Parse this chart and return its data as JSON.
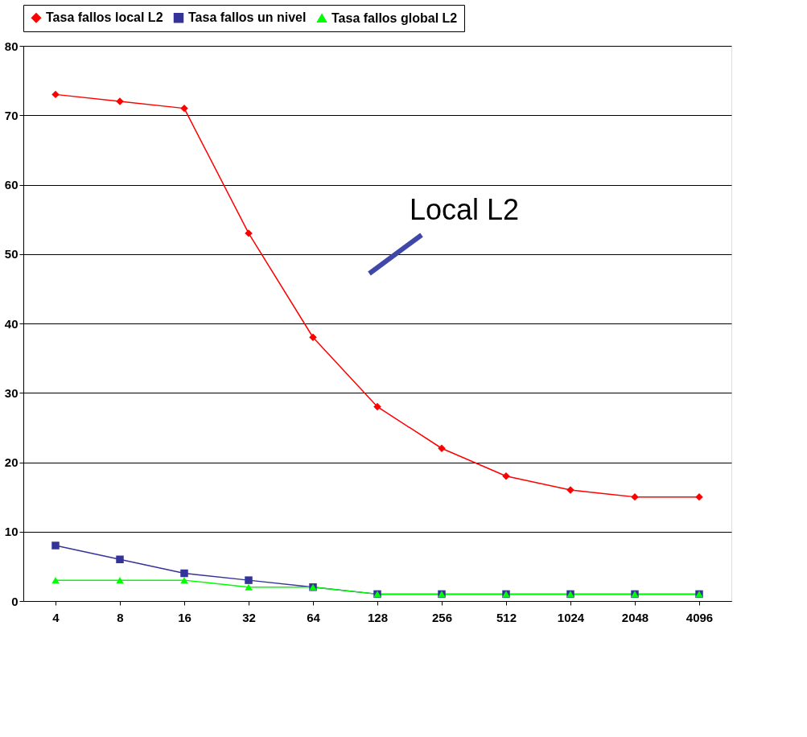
{
  "chart_data": {
    "type": "line",
    "categories": [
      "4",
      "8",
      "16",
      "32",
      "64",
      "128",
      "256",
      "512",
      "1024",
      "2048",
      "4096"
    ],
    "series": [
      {
        "name": "Tasa fallos local L2",
        "color": "#ff0000",
        "marker": "diamond",
        "values": [
          73,
          72,
          71,
          53,
          38,
          28,
          22,
          18,
          16,
          15,
          15
        ]
      },
      {
        "name": "Tasa fallos un nivel",
        "color": "#333399",
        "marker": "square",
        "values": [
          8,
          6,
          4,
          3,
          2,
          1,
          1,
          1,
          1,
          1,
          1
        ]
      },
      {
        "name": "Tasa fallos global L2",
        "color": "#00ff00",
        "marker": "triangle",
        "values": [
          3,
          3,
          3,
          2,
          2,
          1,
          1,
          1,
          1,
          1,
          1
        ]
      }
    ],
    "ylim": [
      0,
      80
    ],
    "yticks": [
      0,
      10,
      20,
      30,
      40,
      50,
      60,
      70,
      80
    ],
    "grid": "y",
    "legend": "top",
    "line_style": "solid",
    "annotations": [
      "Local L2"
    ]
  }
}
